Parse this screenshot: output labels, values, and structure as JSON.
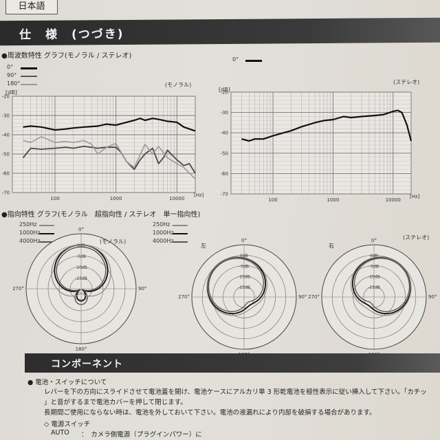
{
  "page": {
    "lang_tab": "日本語",
    "section_title": "仕　様　(つづき)"
  },
  "freq": {
    "heading": "●周波数特性 グラフ(モノラル / ステレオ)",
    "legend": [
      {
        "label": "0°",
        "color": "#111",
        "width": 3
      },
      {
        "label": "90°",
        "color": "#555",
        "width": 2
      },
      {
        "label": "180°",
        "color": "#999",
        "width": 2
      }
    ],
    "legend_right": {
      "label": "0°",
      "color": "#111"
    },
    "mono_tag": "(モノラル)",
    "stereo_tag": "(ステレオ)",
    "unit_db": "[dB]",
    "unit_hz": "[Hz]"
  },
  "polar": {
    "heading": "●指向特性 グラフ(モノラル　超指向性 / ステレオ　単一指向性)",
    "legend": [
      {
        "label": "250Hz",
        "color": "#888"
      },
      {
        "label": "1000Hz",
        "color": "#111"
      },
      {
        "label": "4000Hz",
        "color": "#555"
      }
    ],
    "mono_tag": "(モノラル)",
    "stereo_tag": "(ステレオ)",
    "left_tag": "左",
    "right_tag": "右",
    "angle_0": "0°",
    "angle_90": "90°",
    "angle_180": "180°",
    "angle_270": "270°",
    "rings": [
      "0dB",
      "-5dB",
      "-10dB",
      "-15dB"
    ]
  },
  "chart_data": [
    {
      "type": "line",
      "title": "",
      "stereo_or_mono": "モノラル",
      "x_scale": "log",
      "xlim": [
        20,
        20000
      ],
      "ylim": [
        -70,
        -20
      ],
      "x_ticks": [
        "100",
        "1000",
        "10000"
      ],
      "y_ticks": [
        "-20",
        "-30",
        "-40",
        "-50",
        "-60",
        "-70"
      ],
      "grid": true,
      "series": [
        {
          "name": "0°",
          "x": [
            30,
            40,
            60,
            100,
            150,
            200,
            300,
            500,
            700,
            1000,
            1500,
            2000,
            2500,
            3000,
            4000,
            5000,
            7000,
            10000,
            13000,
            16000,
            20000
          ],
          "y": [
            -36,
            -35.5,
            -36,
            -37.5,
            -37,
            -36.5,
            -36,
            -35.5,
            -34.5,
            -35,
            -33.5,
            -32.5,
            -31.5,
            -32.5,
            -31.5,
            -32,
            -33,
            -33.5,
            -36,
            -37,
            -38
          ]
        },
        {
          "name": "90°",
          "x": [
            30,
            40,
            60,
            100,
            150,
            200,
            300,
            500,
            700,
            1000,
            1200,
            1500,
            2000,
            2500,
            3000,
            4000,
            5000,
            6000,
            7000,
            8000,
            10000,
            13000,
            16000,
            20000
          ],
          "y": [
            -52,
            -47,
            -47.5,
            -47,
            -46.5,
            -47,
            -46,
            -47,
            -46.5,
            -46.5,
            -49,
            -54,
            -58,
            -53,
            -50,
            -47,
            -55,
            -52,
            -48,
            -50,
            -53,
            -56,
            -55,
            -60
          ]
        },
        {
          "name": "180°",
          "x": [
            30,
            40,
            60,
            100,
            150,
            200,
            300,
            400,
            500,
            700,
            1000,
            1500,
            2000,
            3000,
            4000,
            5000,
            7000,
            10000,
            13000,
            20000
          ],
          "y": [
            -43,
            -44,
            -41,
            -44,
            -43.5,
            -44,
            -43,
            -45,
            -50,
            -46.5,
            -44.5,
            -54,
            -57,
            -45,
            -50,
            -46,
            -52,
            -55,
            -57,
            -63
          ]
        }
      ]
    },
    {
      "type": "line",
      "title": "",
      "stereo_or_mono": "ステレオ",
      "x_scale": "log",
      "xlim": [
        20,
        20000
      ],
      "ylim": [
        -70,
        -20
      ],
      "x_ticks": [
        "100",
        "1000",
        "10000"
      ],
      "y_ticks": [
        "-20",
        "-30",
        "-40",
        "-50",
        "-60",
        "-70"
      ],
      "grid": true,
      "series": [
        {
          "name": "0°",
          "x": [
            30,
            40,
            50,
            70,
            100,
            150,
            200,
            300,
            500,
            700,
            1000,
            1500,
            2000,
            3000,
            5000,
            7000,
            10000,
            12000,
            14000,
            17000,
            20000
          ],
          "y": [
            -43,
            -44,
            -43,
            -43,
            -41.5,
            -40,
            -39,
            -37,
            -35,
            -34,
            -33.5,
            -32,
            -32.5,
            -32,
            -31.5,
            -31,
            -29.5,
            -29,
            -30,
            -36,
            -44
          ]
        }
      ]
    }
  ],
  "components": {
    "title": "コンポーネント",
    "item_heading": "● 電池・スイッチについて",
    "line1": "レバーを下の方向にスライドさせて電池蓋を開け、電池ケースにアルカリ単 3 形乾電池を極性表示に従い挿入して下さい。「カチッ",
    "line2": "」と音がするまで電池カバーを押して閉じます。",
    "line3": "長期間ご使用にならない時は、電池を外しておいて下さい。電池の液漏れにより内部を破損する場合があります。",
    "sub_heading": "◇ 電源スイッチ",
    "auto_label": "AUTO",
    "auto_desc": "：　カメラ側電源（プラグインパワー）に"
  }
}
